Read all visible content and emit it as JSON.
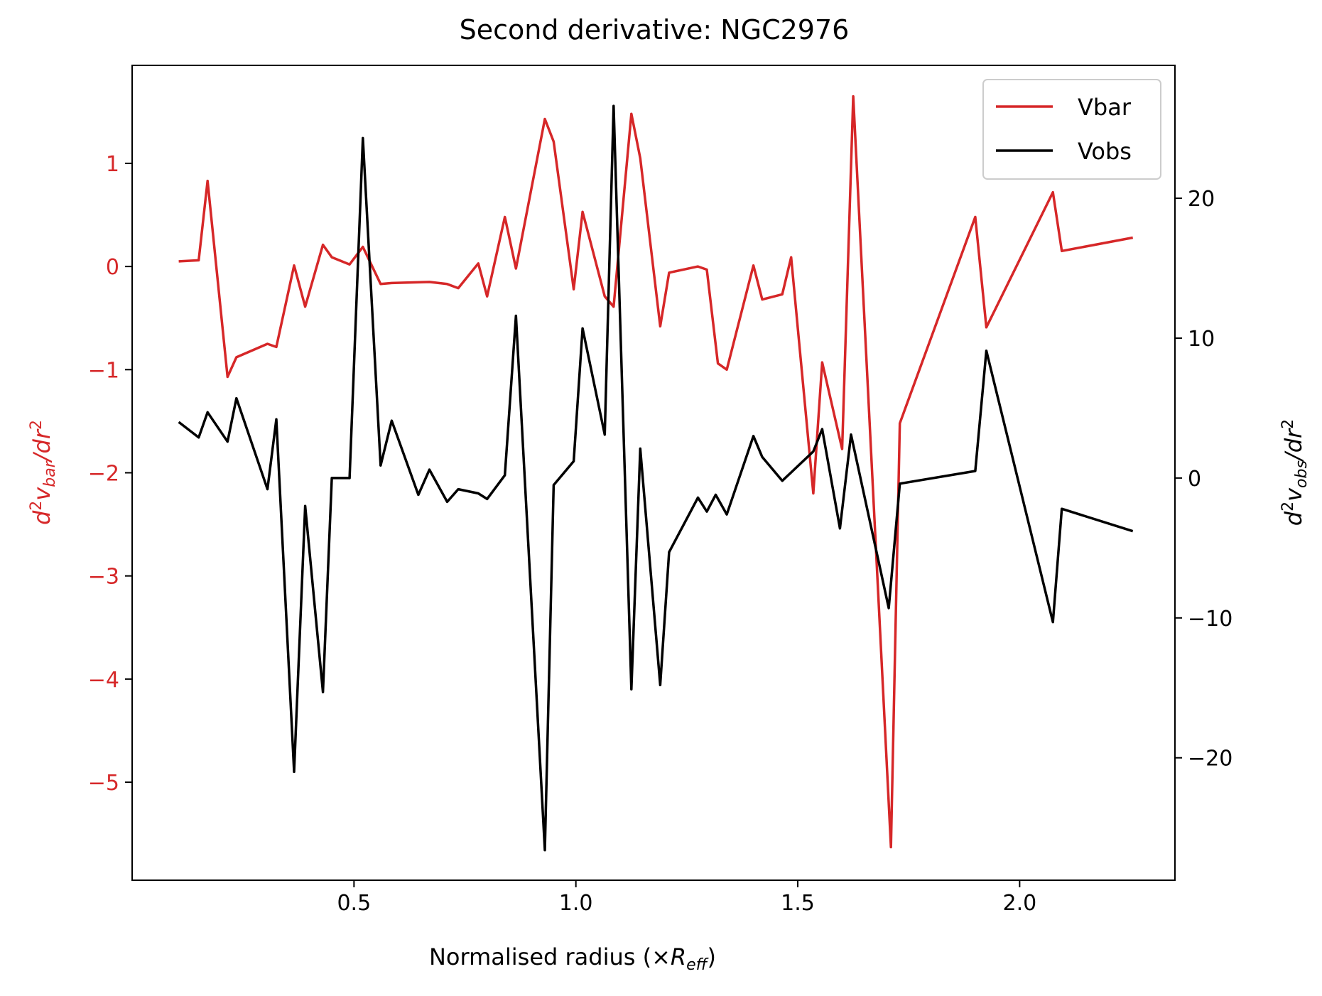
{
  "chart_data": {
    "type": "line",
    "title": "Second derivative: NGC2976",
    "xlabel": {
      "prefix": "Normalised radius (×",
      "symbol": "R",
      "sub": "eff",
      "suffix": ")"
    },
    "ylabel_left": {
      "d": "d",
      "sup1": "2",
      "v": "v",
      "sub": "bar",
      "rest": "/dr",
      "sup2": "2"
    },
    "ylabel_right": {
      "d": "d",
      "sup1": "2",
      "v": "v",
      "sub": "obs",
      "rest": "/dr",
      "sup2": "2"
    },
    "xlim": [
      0.0,
      2.35
    ],
    "ylim_left": [
      -5.95,
      1.95
    ],
    "ylim_right": [
      -28.75,
      29.5
    ],
    "xticks": [
      0.5,
      1.0,
      1.5,
      2.0
    ],
    "xtick_labels": [
      "0.5",
      "1.0",
      "1.5",
      "2.0"
    ],
    "yticks_left": [
      1,
      0,
      -1,
      -2,
      -3,
      -4,
      -5
    ],
    "ytick_labels_left": [
      "1",
      "0",
      "−1",
      "−2",
      "−3",
      "−4",
      "−5"
    ],
    "yticks_right": [
      20,
      10,
      0,
      -10,
      -20
    ],
    "ytick_labels_right": [
      "20",
      "10",
      "0",
      "−10",
      "−20"
    ],
    "grid": false,
    "legend_position": "top-right",
    "colors": {
      "vbar": "#d62728",
      "vobs": "#000000"
    },
    "series": [
      {
        "name": "Vbar",
        "axis": "left",
        "x": [
          0.105,
          0.15,
          0.17,
          0.215,
          0.235,
          0.305,
          0.325,
          0.365,
          0.39,
          0.43,
          0.45,
          0.49,
          0.52,
          0.56,
          0.585,
          0.67,
          0.71,
          0.735,
          0.78,
          0.8,
          0.84,
          0.865,
          0.93,
          0.95,
          0.995,
          1.015,
          1.065,
          1.085,
          1.125,
          1.145,
          1.19,
          1.21,
          1.275,
          1.295,
          1.32,
          1.34,
          1.4,
          1.42,
          1.465,
          1.485,
          1.535,
          1.555,
          1.6,
          1.625,
          1.71,
          1.73,
          1.9,
          1.925,
          2.075,
          2.095,
          2.255
        ],
        "y": [
          0.05,
          0.06,
          0.83,
          -1.07,
          -0.88,
          -0.75,
          -0.78,
          0.01,
          -0.39,
          0.21,
          0.09,
          0.02,
          0.19,
          -0.17,
          -0.16,
          -0.15,
          -0.17,
          -0.21,
          0.03,
          -0.29,
          0.48,
          -0.02,
          1.43,
          1.21,
          -0.22,
          0.53,
          -0.29,
          -0.39,
          1.48,
          1.05,
          -0.58,
          -0.06,
          0.0,
          -0.03,
          -0.94,
          -1.0,
          0.01,
          -0.32,
          -0.27,
          0.09,
          -2.2,
          -0.93,
          -1.77,
          1.65,
          -5.63,
          -1.52,
          0.48,
          -0.59,
          0.72,
          0.15,
          0.28
        ]
      },
      {
        "name": "Vobs",
        "axis": "right",
        "x": [
          0.105,
          0.15,
          0.17,
          0.215,
          0.235,
          0.305,
          0.325,
          0.365,
          0.39,
          0.43,
          0.45,
          0.49,
          0.52,
          0.56,
          0.585,
          0.645,
          0.67,
          0.71,
          0.735,
          0.78,
          0.8,
          0.84,
          0.865,
          0.93,
          0.95,
          0.995,
          1.015,
          1.065,
          1.085,
          1.125,
          1.145,
          1.19,
          1.21,
          1.275,
          1.295,
          1.315,
          1.34,
          1.4,
          1.42,
          1.465,
          1.485,
          1.535,
          1.555,
          1.595,
          1.62,
          1.705,
          1.73,
          1.9,
          1.925,
          2.075,
          2.095,
          2.255
        ],
        "y": [
          4.0,
          2.9,
          4.7,
          2.6,
          5.7,
          -0.8,
          4.2,
          -21.0,
          -2.0,
          -15.3,
          0.0,
          0.0,
          24.3,
          0.9,
          4.1,
          -1.2,
          0.6,
          -1.7,
          -0.8,
          -1.1,
          -1.5,
          0.2,
          11.6,
          -26.6,
          -0.5,
          1.2,
          10.7,
          3.1,
          26.6,
          -15.1,
          2.1,
          -14.8,
          -5.3,
          -1.4,
          -2.4,
          -1.2,
          -2.6,
          3.0,
          1.5,
          -0.2,
          0.4,
          1.9,
          3.5,
          -3.6,
          3.1,
          -9.3,
          -0.4,
          0.5,
          9.1,
          -10.3,
          -2.2,
          -3.8
        ]
      }
    ]
  }
}
